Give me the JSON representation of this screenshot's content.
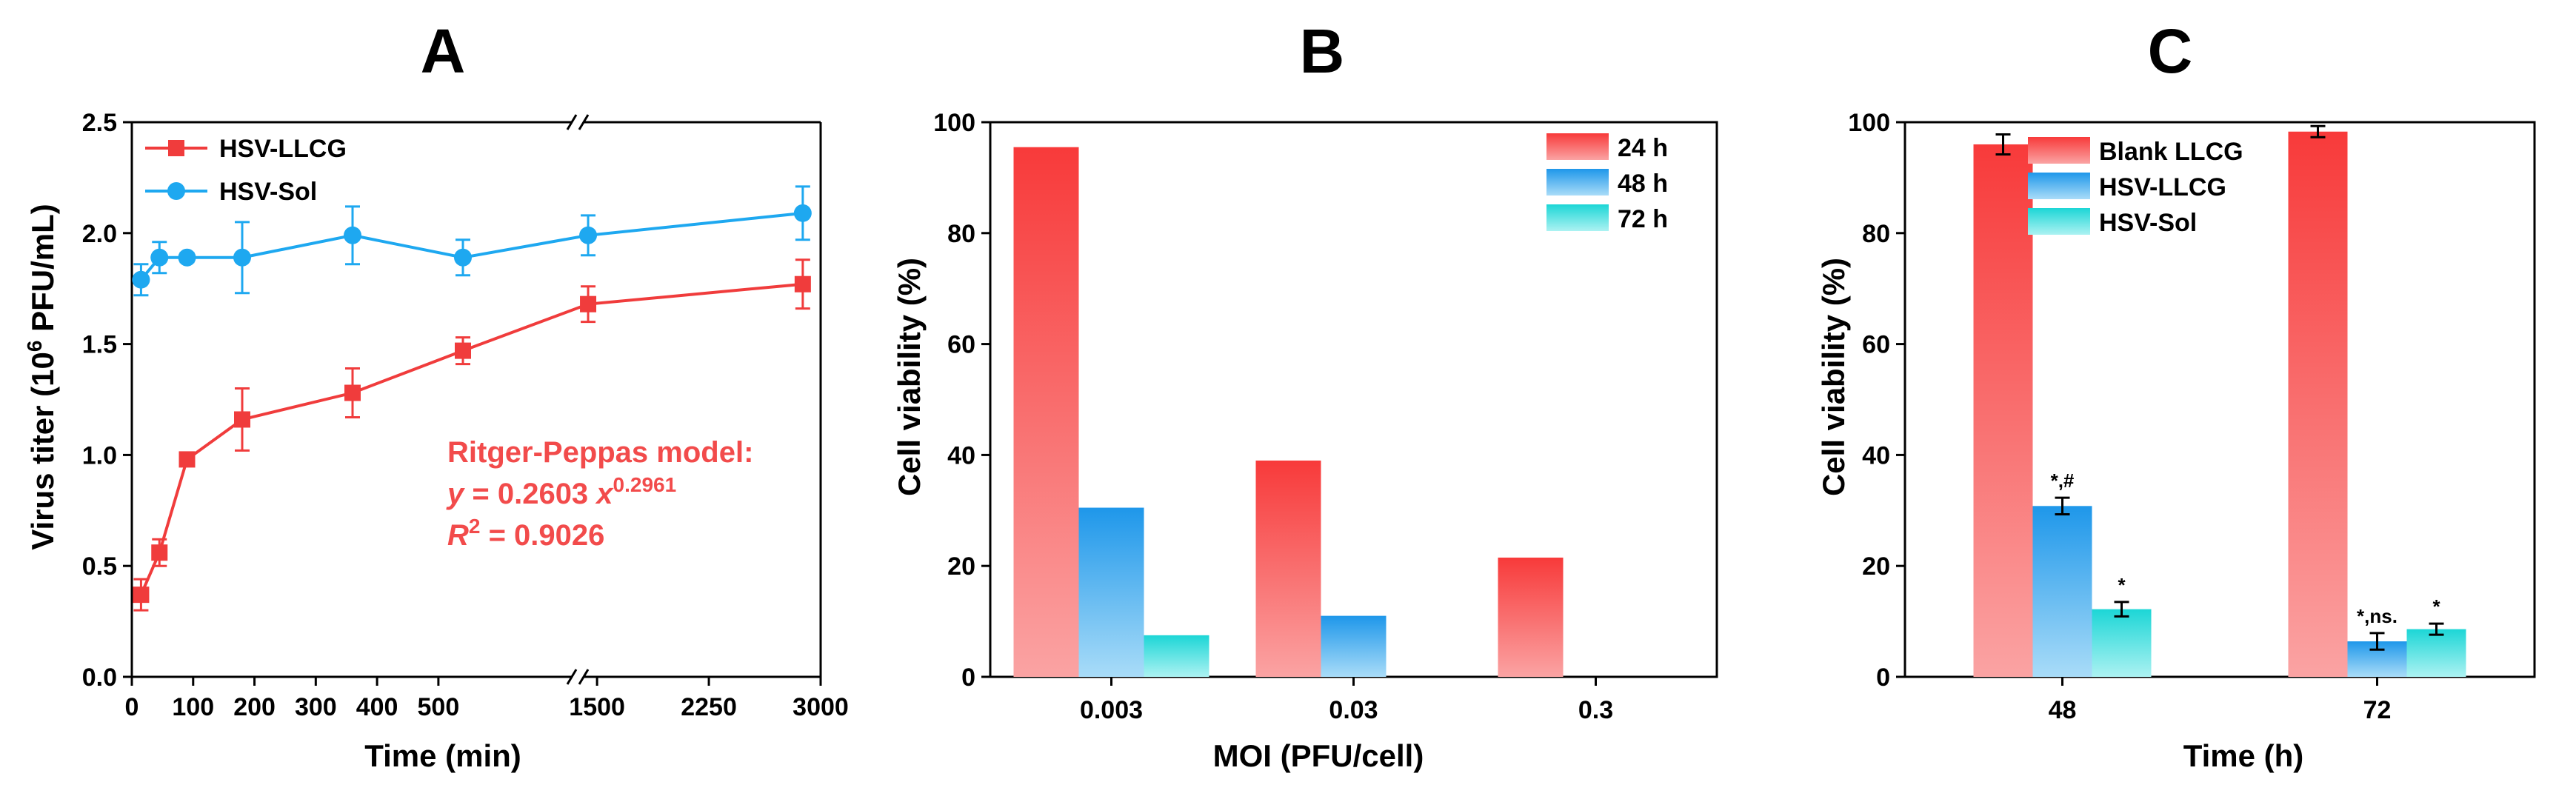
{
  "colors": {
    "red": "#f03c3c",
    "blue": "#1ea8f0",
    "text_red": "#f24b4b"
  },
  "chart_data": [
    {
      "id": "A",
      "panel_label": "A",
      "type": "line",
      "xlabel": "Time (min)",
      "ylabel_prefix": "Virus titer (10",
      "ylabel_sup": "6",
      "ylabel_suffix": " PFU/mL)",
      "ylim": [
        0,
        2.5
      ],
      "yticks": [
        0.0,
        0.5,
        1.0,
        1.5,
        2.0,
        2.5
      ],
      "ytick_labels": [
        "0.0",
        "0.5",
        "1.0",
        "1.5",
        "2.0",
        "2.5"
      ],
      "x_break": true,
      "x_segment1": {
        "range": [
          0,
          720
        ],
        "ticks": [
          0,
          100,
          200,
          300,
          400,
          500
        ],
        "tick_labels": [
          "0",
          "100",
          "200",
          "300",
          "400",
          "500"
        ]
      },
      "x_segment2": {
        "range": [
          1400,
          3000
        ],
        "ticks": [
          1500,
          2250,
          3000
        ],
        "tick_labels": [
          "1500",
          "2250",
          "3000"
        ]
      },
      "series": [
        {
          "name": "HSV-LLCG",
          "color": "#f03c3c",
          "marker": "square",
          "x": [
            15,
            45,
            90,
            180,
            360,
            540,
            1440,
            2880
          ],
          "y": [
            0.37,
            0.56,
            0.98,
            1.16,
            1.28,
            1.47,
            1.68,
            1.77
          ],
          "err": [
            0.07,
            0.06,
            0.02,
            0.14,
            0.11,
            0.06,
            0.08,
            0.11
          ]
        },
        {
          "name": "HSV-Sol",
          "color": "#1ea8f0",
          "marker": "circle",
          "x": [
            15,
            45,
            90,
            180,
            360,
            540,
            1440,
            2880
          ],
          "y": [
            1.79,
            1.89,
            1.89,
            1.89,
            1.99,
            1.89,
            1.99,
            2.09
          ],
          "err": [
            0.07,
            0.07,
            0.02,
            0.16,
            0.13,
            0.08,
            0.09,
            0.12
          ]
        }
      ],
      "annotation": {
        "title": "Ritger-Peppas model:",
        "eq_y": "y",
        "eq_mid": " = 0.2603 ",
        "eq_x": "x",
        "eq_exp": "0.2961",
        "r2_r": "R",
        "r2_exp": "2",
        "r2_val": " = 0.9026"
      }
    },
    {
      "id": "B",
      "panel_label": "B",
      "type": "bar",
      "xlabel": "MOI (PFU/cell)",
      "ylabel": "Cell viability (%)",
      "ylim": [
        0,
        100
      ],
      "yticks": [
        0,
        20,
        40,
        60,
        80,
        100
      ],
      "ytick_labels": [
        "0",
        "20",
        "40",
        "60",
        "80",
        "100"
      ],
      "categories": [
        "0.003",
        "0.03",
        "0.3"
      ],
      "series": [
        {
          "name": "24 h",
          "color": "red",
          "values": [
            95.5,
            39,
            21.5
          ]
        },
        {
          "name": "48 h",
          "color": "blue",
          "values": [
            30.5,
            11,
            null
          ]
        },
        {
          "name": "72 h",
          "color": "cyan",
          "values": [
            7.5,
            null,
            null
          ]
        }
      ]
    },
    {
      "id": "C",
      "panel_label": "C",
      "type": "bar",
      "xlabel": "Time (h)",
      "ylabel": "Cell viability (%)",
      "ylim": [
        0,
        100
      ],
      "yticks": [
        0,
        20,
        40,
        60,
        80,
        100
      ],
      "ytick_labels": [
        "0",
        "20",
        "40",
        "60",
        "80",
        "100"
      ],
      "categories": [
        "48",
        "72"
      ],
      "series": [
        {
          "name": "Blank LLCG",
          "color": "red",
          "values": [
            96,
            98.3
          ],
          "err": [
            1.8,
            1.0
          ],
          "labels": [
            "",
            ""
          ]
        },
        {
          "name": "HSV-LLCG",
          "color": "blue",
          "values": [
            30.8,
            6.4
          ],
          "err": [
            1.5,
            1.5
          ],
          "labels": [
            "*,#",
            "*,ns."
          ]
        },
        {
          "name": "HSV-Sol",
          "color": "cyan",
          "values": [
            12.2,
            8.6
          ],
          "err": [
            1.3,
            1.0
          ],
          "labels": [
            "*",
            "*"
          ]
        }
      ]
    }
  ]
}
